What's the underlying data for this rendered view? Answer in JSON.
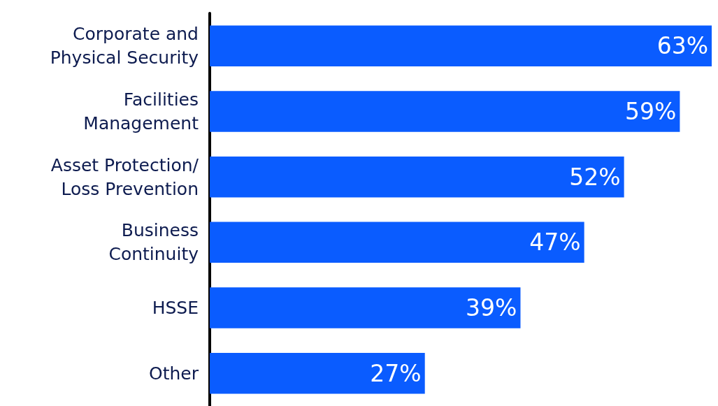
{
  "chart_data": {
    "type": "bar",
    "orientation": "horizontal",
    "categories": [
      "Corporate and\nPhysical Security",
      "Facilities\nManagement",
      "Asset Protection/\nLoss Prevention",
      "Business\nContinuity",
      "HSSE",
      "Other"
    ],
    "values": [
      63,
      59,
      52,
      47,
      39,
      27
    ],
    "value_labels": [
      "63%",
      "59%",
      "52%",
      "47%",
      "39%",
      "27%"
    ],
    "color": "#0a5cff",
    "tick_labels": "y"
  }
}
